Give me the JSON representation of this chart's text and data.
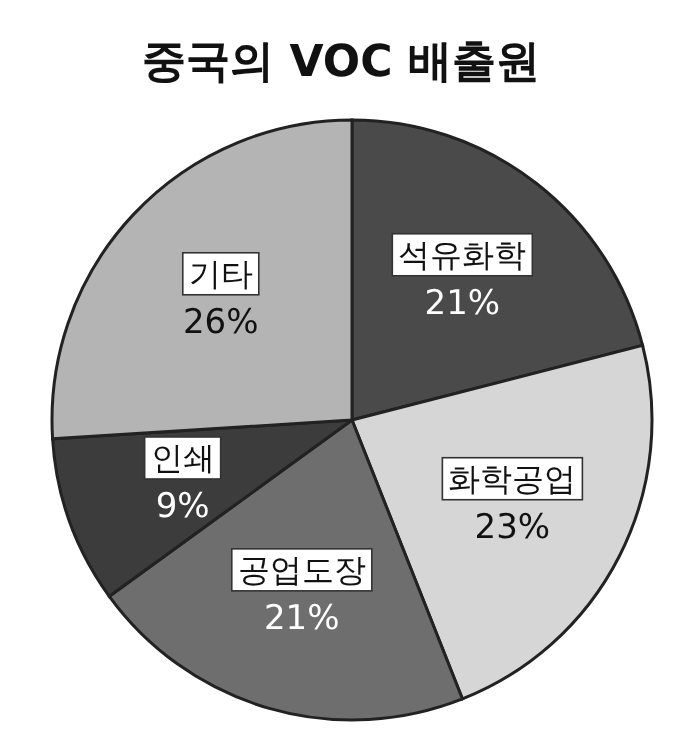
{
  "chart_data": {
    "type": "pie",
    "title": "중국의 VOC 배출원",
    "categories": [
      "석유화학",
      "화학공업",
      "공업도장",
      "인쇄",
      "기타"
    ],
    "values": [
      21,
      23,
      21,
      9,
      26
    ],
    "value_labels": [
      "21%",
      "23%",
      "21%",
      "9%",
      "26%"
    ],
    "colors": [
      "#4a4a4a",
      "#d6d6d6",
      "#6e6e6e",
      "#3c3c3c",
      "#b4b4b4"
    ]
  }
}
